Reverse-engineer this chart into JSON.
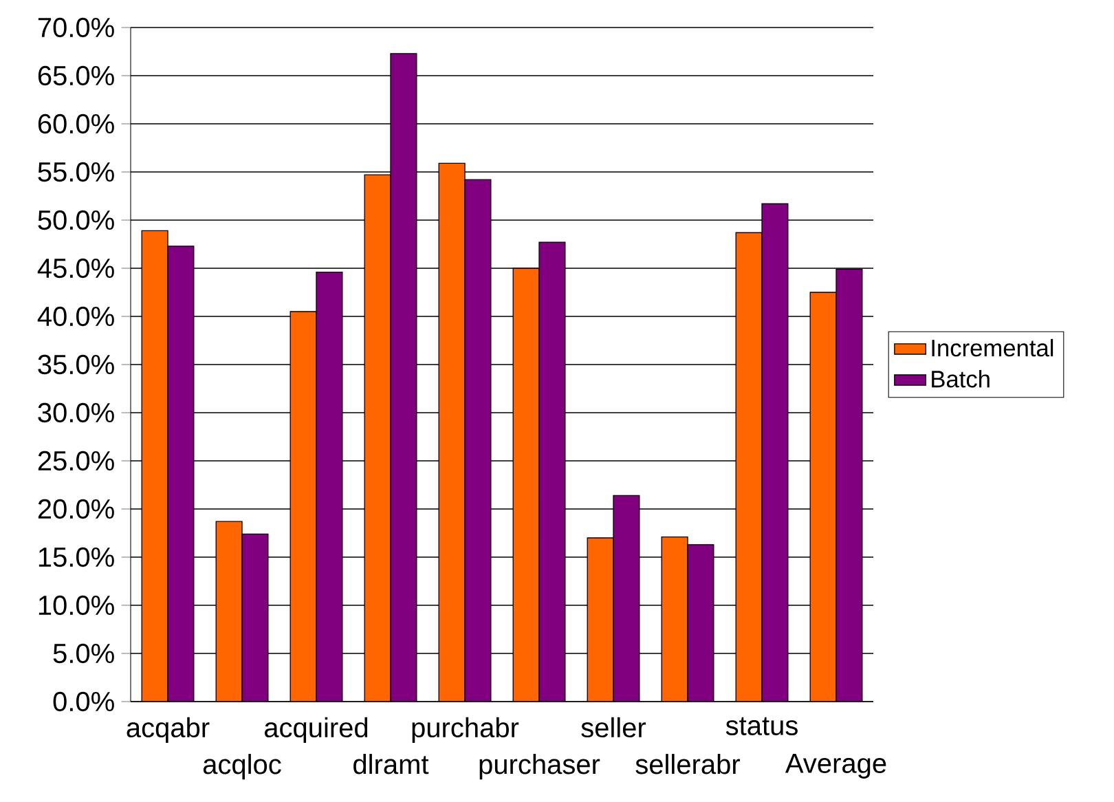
{
  "chart_data": {
    "type": "bar",
    "categories": [
      "acqabr",
      "acqloc",
      "acquired",
      "dlramt",
      "purchabr",
      "purchaser",
      "seller",
      "sellerabr",
      "status",
      "Average"
    ],
    "series": [
      {
        "name": "Incremental",
        "color": "#ff6600",
        "values": [
          48.9,
          18.7,
          40.5,
          54.7,
          55.9,
          45.0,
          17.0,
          17.1,
          48.7,
          42.5
        ]
      },
      {
        "name": "Batch",
        "color": "#800080",
        "values": [
          47.3,
          17.4,
          44.6,
          67.3,
          54.2,
          47.7,
          21.4,
          16.3,
          51.7,
          44.9
        ]
      }
    ],
    "ylim": [
      0,
      70
    ],
    "yticks": [
      {
        "value": 0,
        "label": "0.0%"
      },
      {
        "value": 5,
        "label": "5.0%"
      },
      {
        "value": 10,
        "label": "10.0%"
      },
      {
        "value": 15,
        "label": "15.0%"
      },
      {
        "value": 20,
        "label": "20.0%"
      },
      {
        "value": 25,
        "label": "25.0%"
      },
      {
        "value": 30,
        "label": "30.0%"
      },
      {
        "value": 35,
        "label": "35.0%"
      },
      {
        "value": 40,
        "label": "40.0%"
      },
      {
        "value": 45,
        "label": "45.0%"
      },
      {
        "value": 50,
        "label": "50.0%"
      },
      {
        "value": 55,
        "label": "55.0%"
      },
      {
        "value": 60,
        "label": "60.0%"
      },
      {
        "value": 65,
        "label": "65.0%"
      },
      {
        "value": 70,
        "label": "70.0%"
      }
    ],
    "grid": "y",
    "legend": "right"
  }
}
